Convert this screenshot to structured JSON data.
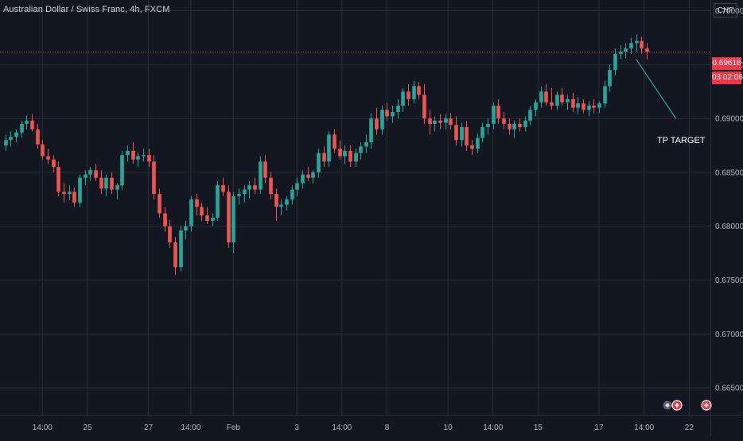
{
  "header": {
    "title": "Australian Dollar / Swiss Franc, 4h, FXCM",
    "currency": "CHF"
  },
  "price_scale": {
    "current_price": "0.69618",
    "countdown": "03:02:06"
  },
  "annotation": {
    "text": "TP TARGET",
    "line_start": {
      "x_index": 119,
      "y": 0.6955
    },
    "line_end": {
      "x_index": 126.5,
      "y": 0.69
    }
  },
  "colors": {
    "background": "#131722",
    "grid": "#2a2e39",
    "up": "#26a69a",
    "down": "#ef5350",
    "price_line": "#f23645",
    "annotation_line": "#26a69a"
  },
  "event_icons": [
    "earnings-icon",
    "dividend-icon",
    "dividend-icon"
  ],
  "chart_data": {
    "type": "candlestick",
    "title": "Australian Dollar / Swiss Franc, 4h, FXCM",
    "ylim": [
      0.6625,
      0.701
    ],
    "y_ticks": [
      "0.70000",
      "0.69500",
      "0.69000",
      "0.68500",
      "0.68000",
      "0.67500",
      "0.67000",
      "0.66500"
    ],
    "x_ticks": [
      {
        "label": "14:00",
        "index": 7
      },
      {
        "label": "25",
        "index": 15.5
      },
      {
        "label": "27",
        "index": 27
      },
      {
        "label": "14:00",
        "index": 35
      },
      {
        "label": "Feb",
        "index": 43
      },
      {
        "label": "3",
        "index": 55
      },
      {
        "label": "14:00",
        "index": 63.5
      },
      {
        "label": "8",
        "index": 72
      },
      {
        "label": "10",
        "index": 83.5
      },
      {
        "label": "14:00",
        "index": 92
      },
      {
        "label": "15",
        "index": 100.5
      },
      {
        "label": "17",
        "index": 112
      },
      {
        "label": "14:00",
        "index": 120.5
      },
      {
        "label": "22",
        "index": 129
      }
    ],
    "x_range": [
      -1,
      133
    ],
    "grid": true,
    "candles": [
      [
        0.6875,
        0.6885,
        0.687,
        0.688
      ],
      [
        0.688,
        0.6888,
        0.6874,
        0.6883
      ],
      [
        0.6883,
        0.689,
        0.6878,
        0.6887
      ],
      [
        0.6887,
        0.6898,
        0.6882,
        0.6895
      ],
      [
        0.6895,
        0.6903,
        0.689,
        0.6898
      ],
      [
        0.6898,
        0.6904,
        0.6888,
        0.689
      ],
      [
        0.689,
        0.6895,
        0.6872,
        0.6876
      ],
      [
        0.6876,
        0.688,
        0.6862,
        0.6865
      ],
      [
        0.6865,
        0.6872,
        0.6858,
        0.6862
      ],
      [
        0.6862,
        0.6866,
        0.685,
        0.6855
      ],
      [
        0.6855,
        0.686,
        0.6828,
        0.6832
      ],
      [
        0.6832,
        0.684,
        0.6822,
        0.683
      ],
      [
        0.683,
        0.6838,
        0.6824,
        0.6832
      ],
      [
        0.6832,
        0.6836,
        0.6818,
        0.6822
      ],
      [
        0.6822,
        0.6848,
        0.6818,
        0.6845
      ],
      [
        0.6845,
        0.6852,
        0.6838,
        0.6848
      ],
      [
        0.6848,
        0.6855,
        0.6842,
        0.6852
      ],
      [
        0.6852,
        0.6858,
        0.6842,
        0.6845
      ],
      [
        0.6845,
        0.6852,
        0.683,
        0.6835
      ],
      [
        0.6835,
        0.6848,
        0.6828,
        0.6845
      ],
      [
        0.6845,
        0.685,
        0.683,
        0.6834
      ],
      [
        0.6834,
        0.684,
        0.6825,
        0.6838
      ],
      [
        0.6838,
        0.687,
        0.6834,
        0.6866
      ],
      [
        0.6866,
        0.6875,
        0.686,
        0.687
      ],
      [
        0.687,
        0.6878,
        0.6858,
        0.6862
      ],
      [
        0.6862,
        0.6868,
        0.6855,
        0.6865
      ],
      [
        0.6865,
        0.6872,
        0.686,
        0.6866
      ],
      [
        0.6866,
        0.6872,
        0.6855,
        0.686
      ],
      [
        0.686,
        0.6866,
        0.6825,
        0.683
      ],
      [
        0.683,
        0.6835,
        0.6808,
        0.6812
      ],
      [
        0.6812,
        0.6818,
        0.6795,
        0.68
      ],
      [
        0.68,
        0.6806,
        0.678,
        0.6785
      ],
      [
        0.6785,
        0.679,
        0.6755,
        0.6762
      ],
      [
        0.6762,
        0.68,
        0.6758,
        0.6796
      ],
      [
        0.6796,
        0.6805,
        0.6788,
        0.68
      ],
      [
        0.68,
        0.6828,
        0.6795,
        0.6825
      ],
      [
        0.6825,
        0.683,
        0.681,
        0.6818
      ],
      [
        0.6818,
        0.6822,
        0.6805,
        0.681
      ],
      [
        0.681,
        0.6818,
        0.6802,
        0.6805
      ],
      [
        0.6805,
        0.6812,
        0.68,
        0.6808
      ],
      [
        0.6808,
        0.6842,
        0.6805,
        0.6838
      ],
      [
        0.6838,
        0.6845,
        0.6828,
        0.6832
      ],
      [
        0.6832,
        0.6838,
        0.678,
        0.6785
      ],
      [
        0.6785,
        0.6832,
        0.6775,
        0.6828
      ],
      [
        0.6828,
        0.6835,
        0.682,
        0.683
      ],
      [
        0.683,
        0.6838,
        0.6822,
        0.6834
      ],
      [
        0.6834,
        0.6842,
        0.6826,
        0.6838
      ],
      [
        0.6838,
        0.6845,
        0.683,
        0.6834
      ],
      [
        0.6834,
        0.6865,
        0.683,
        0.686
      ],
      [
        0.686,
        0.6866,
        0.684,
        0.6845
      ],
      [
        0.6845,
        0.685,
        0.6825,
        0.683
      ],
      [
        0.683,
        0.6835,
        0.6805,
        0.6818
      ],
      [
        0.6818,
        0.6825,
        0.681,
        0.682
      ],
      [
        0.682,
        0.6828,
        0.6815,
        0.6825
      ],
      [
        0.6825,
        0.6838,
        0.682,
        0.6834
      ],
      [
        0.6834,
        0.6845,
        0.6828,
        0.684
      ],
      [
        0.684,
        0.6852,
        0.6835,
        0.6848
      ],
      [
        0.6848,
        0.6855,
        0.6842,
        0.6845
      ],
      [
        0.6845,
        0.6852,
        0.684,
        0.685
      ],
      [
        0.685,
        0.6872,
        0.6845,
        0.6868
      ],
      [
        0.6868,
        0.6874,
        0.6855,
        0.686
      ],
      [
        0.686,
        0.6888,
        0.6855,
        0.6885
      ],
      [
        0.6885,
        0.689,
        0.6868,
        0.6872
      ],
      [
        0.6872,
        0.688,
        0.6862,
        0.6865
      ],
      [
        0.6865,
        0.6875,
        0.6858,
        0.687
      ],
      [
        0.687,
        0.6875,
        0.6855,
        0.686
      ],
      [
        0.686,
        0.6872,
        0.6855,
        0.6868
      ],
      [
        0.6868,
        0.6878,
        0.6862,
        0.6874
      ],
      [
        0.6874,
        0.6885,
        0.6868,
        0.6878
      ],
      [
        0.6878,
        0.6905,
        0.6872,
        0.69
      ],
      [
        0.69,
        0.691,
        0.6885,
        0.689
      ],
      [
        0.689,
        0.6912,
        0.6885,
        0.6908
      ],
      [
        0.6908,
        0.6914,
        0.6898,
        0.6902
      ],
      [
        0.6902,
        0.6912,
        0.6896,
        0.6906
      ],
      [
        0.6906,
        0.6918,
        0.69,
        0.6912
      ],
      [
        0.6912,
        0.6928,
        0.6906,
        0.6925
      ],
      [
        0.6925,
        0.6932,
        0.6912,
        0.6918
      ],
      [
        0.6918,
        0.6935,
        0.6914,
        0.693
      ],
      [
        0.693,
        0.6934,
        0.6918,
        0.6922
      ],
      [
        0.6922,
        0.6932,
        0.6895,
        0.69
      ],
      [
        0.69,
        0.6908,
        0.6885,
        0.6895
      ],
      [
        0.6895,
        0.6902,
        0.6888,
        0.6898
      ],
      [
        0.6898,
        0.6904,
        0.689,
        0.6896
      ],
      [
        0.6896,
        0.6904,
        0.689,
        0.69
      ],
      [
        0.69,
        0.6905,
        0.689,
        0.6894
      ],
      [
        0.6894,
        0.6902,
        0.6875,
        0.688
      ],
      [
        0.688,
        0.6896,
        0.6874,
        0.6892
      ],
      [
        0.6892,
        0.6898,
        0.687,
        0.6875
      ],
      [
        0.6875,
        0.688,
        0.6866,
        0.6872
      ],
      [
        0.6872,
        0.6886,
        0.6868,
        0.6882
      ],
      [
        0.6882,
        0.6896,
        0.6878,
        0.6892
      ],
      [
        0.6892,
        0.69,
        0.6885,
        0.6895
      ],
      [
        0.6895,
        0.6915,
        0.689,
        0.6912
      ],
      [
        0.6912,
        0.6918,
        0.6895,
        0.69
      ],
      [
        0.69,
        0.6906,
        0.689,
        0.6895
      ],
      [
        0.6895,
        0.69,
        0.6885,
        0.689
      ],
      [
        0.689,
        0.6898,
        0.6882,
        0.6895
      ],
      [
        0.6895,
        0.69,
        0.6888,
        0.6892
      ],
      [
        0.6892,
        0.6902,
        0.6888,
        0.6898
      ],
      [
        0.6898,
        0.6912,
        0.6894,
        0.6908
      ],
      [
        0.6908,
        0.6918,
        0.6902,
        0.6915
      ],
      [
        0.6915,
        0.693,
        0.691,
        0.6925
      ],
      [
        0.6925,
        0.6932,
        0.6912,
        0.6915
      ],
      [
        0.6915,
        0.6928,
        0.6908,
        0.6912
      ],
      [
        0.6912,
        0.6925,
        0.6908,
        0.6922
      ],
      [
        0.6922,
        0.6928,
        0.6912,
        0.6915
      ],
      [
        0.6915,
        0.6922,
        0.6908,
        0.6918
      ],
      [
        0.6918,
        0.6924,
        0.6906,
        0.691
      ],
      [
        0.691,
        0.692,
        0.6904,
        0.6914
      ],
      [
        0.6914,
        0.6918,
        0.6905,
        0.6908
      ],
      [
        0.6908,
        0.6916,
        0.6902,
        0.6912
      ],
      [
        0.6912,
        0.6918,
        0.6905,
        0.691
      ],
      [
        0.691,
        0.6916,
        0.6905,
        0.6914
      ],
      [
        0.6914,
        0.6935,
        0.691,
        0.693
      ],
      [
        0.693,
        0.695,
        0.6925,
        0.6945
      ],
      [
        0.6945,
        0.6965,
        0.694,
        0.696
      ],
      [
        0.696,
        0.6968,
        0.6955,
        0.6962
      ],
      [
        0.6962,
        0.697,
        0.6956,
        0.6965
      ],
      [
        0.6965,
        0.6975,
        0.696,
        0.697
      ],
      [
        0.697,
        0.6978,
        0.6962,
        0.6972
      ],
      [
        0.6972,
        0.6976,
        0.696,
        0.6965
      ],
      [
        0.6965,
        0.697,
        0.6955,
        0.69618
      ]
    ]
  }
}
